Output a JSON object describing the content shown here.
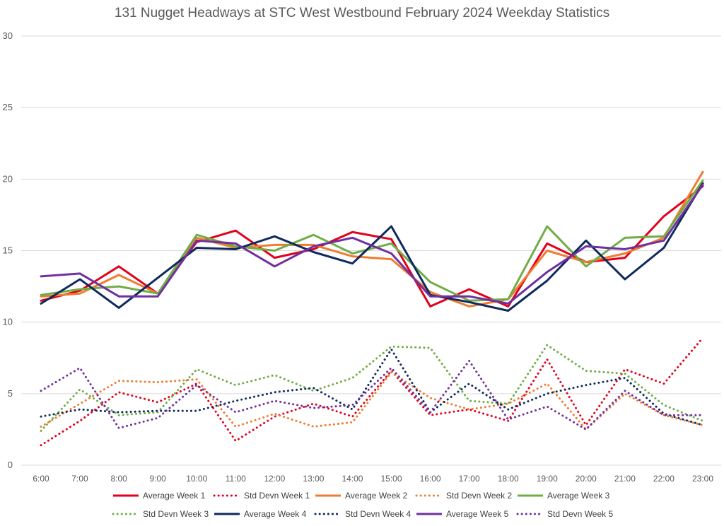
{
  "chart_data": {
    "type": "line",
    "title": "131 Nugget Headways at STC West Westbound February 2024 Weekday Statistics",
    "xlabel": "",
    "ylabel": "",
    "categories": [
      "6:00",
      "7:00",
      "8:00",
      "9:00",
      "10:00",
      "11:00",
      "12:00",
      "13:00",
      "14:00",
      "15:00",
      "16:00",
      "17:00",
      "18:00",
      "19:00",
      "20:00",
      "21:00",
      "22:00",
      "23:00"
    ],
    "ylim": [
      0,
      30
    ],
    "yticks": [
      0,
      5,
      10,
      15,
      20,
      25,
      30
    ],
    "grid": true,
    "legend_position": "bottom",
    "series": [
      {
        "name": "Average Week 1",
        "style": "solid",
        "color": "#e3001b",
        "values": [
          11.5,
          12.2,
          13.9,
          12.0,
          15.6,
          16.4,
          14.5,
          15.1,
          16.3,
          15.8,
          11.1,
          12.3,
          11.1,
          15.5,
          14.2,
          14.5,
          17.4,
          19.5
        ]
      },
      {
        "name": "Std Devn Week 1",
        "style": "dotted",
        "color": "#e3001b",
        "values": [
          1.4,
          3.1,
          5.1,
          4.4,
          5.7,
          1.7,
          3.4,
          4.3,
          3.4,
          6.6,
          3.5,
          3.9,
          3.1,
          7.4,
          2.8,
          6.7,
          5.7,
          8.9
        ]
      },
      {
        "name": "Average Week 2",
        "style": "solid",
        "color": "#ed7d31",
        "values": [
          11.8,
          12.0,
          13.3,
          12.0,
          15.9,
          15.2,
          15.4,
          15.4,
          14.6,
          14.4,
          12.1,
          11.1,
          11.6,
          15.0,
          14.2,
          14.8,
          15.9,
          20.5
        ]
      },
      {
        "name": "Std Devn Week 2",
        "style": "dotted",
        "color": "#ed7d31",
        "values": [
          2.7,
          4.3,
          5.9,
          5.8,
          6.0,
          2.7,
          3.6,
          2.7,
          3.0,
          6.5,
          4.7,
          3.9,
          4.3,
          5.7,
          2.5,
          5.0,
          3.5,
          2.8
        ]
      },
      {
        "name": "Average Week 3",
        "style": "solid",
        "color": "#70ad47",
        "values": [
          11.9,
          12.3,
          12.5,
          12.0,
          16.1,
          15.3,
          15.0,
          16.1,
          14.8,
          15.5,
          12.8,
          11.5,
          11.6,
          16.7,
          13.9,
          15.9,
          16.0,
          19.9
        ]
      },
      {
        "name": "Std Devn Week 3",
        "style": "dotted",
        "color": "#70ad47",
        "values": [
          2.4,
          5.3,
          3.5,
          3.7,
          6.7,
          5.6,
          6.3,
          5.2,
          6.1,
          8.3,
          8.2,
          4.5,
          4.3,
          8.4,
          6.6,
          6.4,
          4.2,
          3.1
        ]
      },
      {
        "name": "Average Week 4",
        "style": "solid",
        "color": "#0f2a5c",
        "values": [
          11.3,
          13.0,
          11.0,
          13.1,
          15.2,
          15.1,
          16.0,
          14.9,
          14.1,
          16.7,
          11.9,
          11.4,
          10.8,
          12.9,
          15.7,
          13.0,
          15.2,
          19.7
        ]
      },
      {
        "name": "Std Devn Week 4",
        "style": "dotted",
        "color": "#0f2a5c",
        "values": [
          3.4,
          3.9,
          3.7,
          3.8,
          3.8,
          4.5,
          5.1,
          5.4,
          3.9,
          8.1,
          3.7,
          5.7,
          3.9,
          5.0,
          5.6,
          6.1,
          3.6,
          2.8
        ]
      },
      {
        "name": "Average Week 5",
        "style": "solid",
        "color": "#7030a0",
        "values": [
          13.2,
          13.4,
          11.8,
          11.8,
          15.7,
          15.5,
          13.9,
          15.3,
          15.9,
          14.8,
          11.8,
          11.8,
          11.3,
          13.5,
          15.3,
          15.1,
          15.7,
          19.6
        ]
      },
      {
        "name": "Std Devn Week 5",
        "style": "dotted",
        "color": "#7030a0",
        "values": [
          5.2,
          6.8,
          2.6,
          3.3,
          5.6,
          3.7,
          4.5,
          4.0,
          4.2,
          6.8,
          3.7,
          7.3,
          3.2,
          4.1,
          2.5,
          5.2,
          3.5,
          3.5
        ]
      }
    ]
  }
}
